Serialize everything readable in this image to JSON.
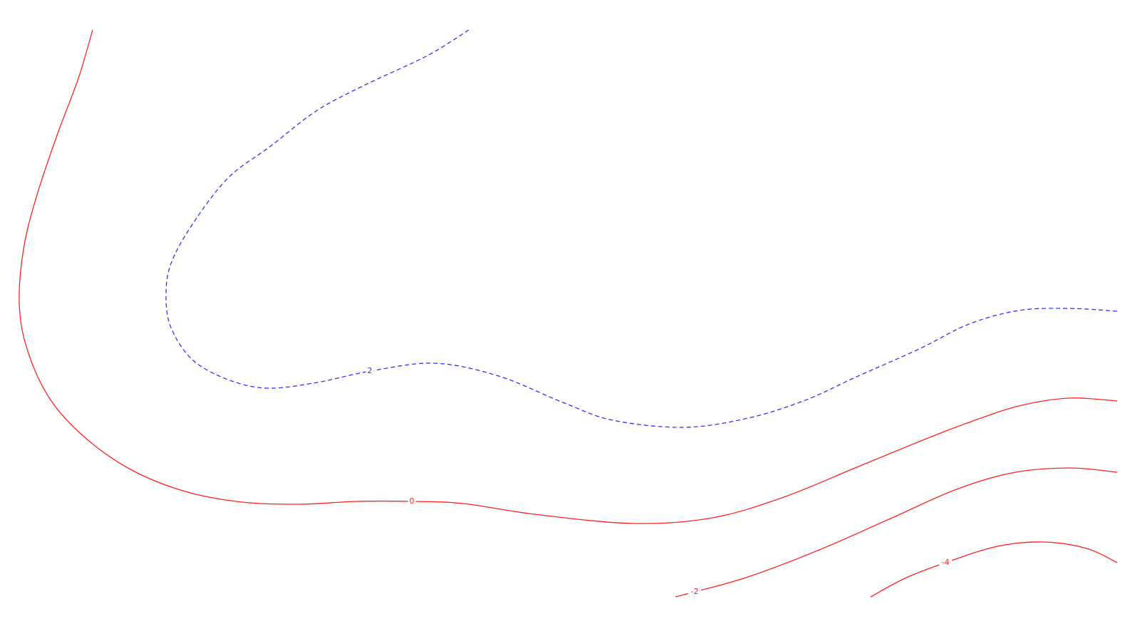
{
  "chart_data": {
    "type": "contour",
    "title": "",
    "xlabel": "",
    "ylabel": "",
    "grid": false,
    "legend": "none",
    "colors": {
      "positive": "#3333ff",
      "nonpositive": "#ff2222"
    },
    "levels": [
      {
        "level": 2,
        "label": "2",
        "style": "dashed",
        "color": "#3333ff",
        "points": [
          [
            658,
            42
          ],
          [
            600,
            78
          ],
          [
            515,
            118
          ],
          [
            445,
            155
          ],
          [
            380,
            205
          ],
          [
            320,
            250
          ],
          [
            270,
            315
          ],
          [
            240,
            370
          ],
          [
            233,
            415
          ],
          [
            240,
            460
          ],
          [
            270,
            505
          ],
          [
            320,
            533
          ],
          [
            375,
            545
          ],
          [
            445,
            537
          ],
          [
            520,
            521
          ],
          [
            610,
            510
          ],
          [
            700,
            528
          ],
          [
            790,
            565
          ],
          [
            860,
            590
          ],
          [
            960,
            600
          ],
          [
            1050,
            587
          ],
          [
            1130,
            562
          ],
          [
            1200,
            530
          ],
          [
            1290,
            490
          ],
          [
            1360,
            455
          ],
          [
            1430,
            436
          ],
          [
            1500,
            433
          ],
          [
            1568,
            437
          ]
        ],
        "label_at": [
          519,
          521
        ]
      },
      {
        "level": 0,
        "label": "0",
        "style": "solid",
        "color": "#ff2222",
        "points": [
          [
            130,
            42
          ],
          [
            110,
            110
          ],
          [
            80,
            190
          ],
          [
            50,
            280
          ],
          [
            33,
            350
          ],
          [
            27,
            425
          ],
          [
            38,
            490
          ],
          [
            70,
            560
          ],
          [
            120,
            615
          ],
          [
            185,
            660
          ],
          [
            260,
            690
          ],
          [
            340,
            705
          ],
          [
            420,
            708
          ],
          [
            500,
            704
          ],
          [
            578,
            704
          ],
          [
            650,
            707
          ],
          [
            750,
            722
          ],
          [
            890,
            735
          ],
          [
            1000,
            727
          ],
          [
            1100,
            698
          ],
          [
            1200,
            657
          ],
          [
            1290,
            620
          ],
          [
            1360,
            593
          ],
          [
            1430,
            570
          ],
          [
            1500,
            559
          ],
          [
            1568,
            563
          ]
        ],
        "label_at": [
          578,
          704
        ]
      },
      {
        "level": -2,
        "label": "-2",
        "style": "solid",
        "color": "#ff2222",
        "points": [
          [
            948,
            838
          ],
          [
            975,
            831
          ],
          [
            1050,
            810
          ],
          [
            1150,
            772
          ],
          [
            1250,
            728
          ],
          [
            1340,
            688
          ],
          [
            1420,
            664
          ],
          [
            1500,
            657
          ],
          [
            1568,
            663
          ]
        ],
        "label_at": [
          975,
          831
        ]
      },
      {
        "level": -4,
        "label": "-4",
        "style": "solid",
        "color": "#ff2222",
        "points": [
          [
            1222,
            838
          ],
          [
            1270,
            812
          ],
          [
            1327,
            790
          ],
          [
            1400,
            767
          ],
          [
            1465,
            761
          ],
          [
            1525,
            770
          ],
          [
            1568,
            790
          ]
        ],
        "label_at": [
          1327,
          790
        ]
      }
    ]
  }
}
